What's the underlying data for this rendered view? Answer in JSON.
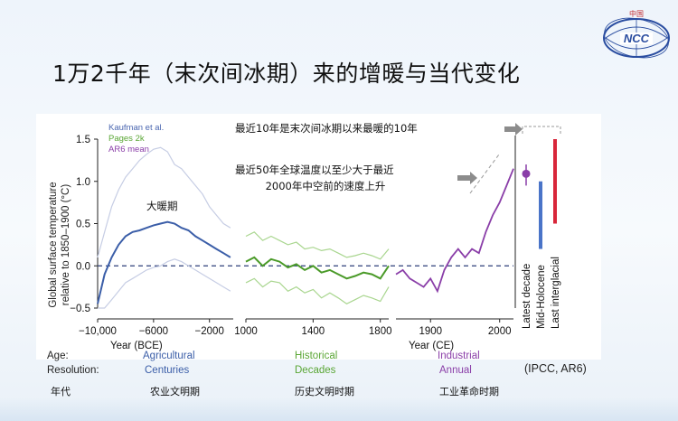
{
  "slide": {
    "title": "1万2千年（末次间冰期）来的增暖与当代变化",
    "logo_text": "中国",
    "logo_brand": "NCC",
    "source": "(IPCC, AR6)"
  },
  "eras": {
    "age_label": "Age:",
    "resolution_label": "Resolution:",
    "agricultural": "Agricultural",
    "centuries": "Centuries",
    "historical": "Historical",
    "decades": "Decades",
    "industrial": "Industrial",
    "annual": "Annual",
    "cn_era": "年代",
    "cn_agri": "农业文明期",
    "cn_hist": "历史文明时期",
    "cn_ind": "工业革命时期",
    "colors": {
      "agricultural": "#3b5ea8",
      "historical": "#5aa635",
      "industrial": "#8a3ea8"
    }
  },
  "annotations": {
    "warm_period": "大暖期",
    "last_decade": "最近10年是末次间冰期以来最暖的10年",
    "rate_line1": "最近50年全球温度以至少大于最近",
    "rate_line2": "2000年中空前的速度上升"
  },
  "chart_data": {
    "type": "line",
    "ylabel_line1": "Global surface temperature",
    "ylabel_line2": "relative to 1850–1900 (°C)",
    "ylim": [
      -0.5,
      1.5
    ],
    "yticks": [
      "1.5",
      "1.0",
      "0.5",
      "0.0",
      "−0.5"
    ],
    "ytick_values": [
      1.5,
      1.0,
      0.5,
      0.0,
      -0.5
    ],
    "legend": [
      {
        "name": "Kaufman et al.",
        "color": "#4a66b0"
      },
      {
        "name": "Pages 2k",
        "color": "#5aa635"
      },
      {
        "name": "AR6 mean",
        "color": "#8a3ea8"
      }
    ],
    "panel1": {
      "xlabel": "Year (BCE)",
      "xlim": [
        -10000,
        -300
      ],
      "xticks": [
        "−10,000",
        "−6000",
        "−2000"
      ],
      "xtick_values": [
        -10000,
        -6000,
        -2000
      ],
      "x": [
        -10000,
        -9500,
        -9000,
        -8500,
        -8000,
        -7500,
        -7000,
        -6500,
        -6000,
        -5500,
        -5000,
        -4500,
        -4000,
        -3500,
        -3000,
        -2500,
        -2000,
        -1500,
        -1000,
        -500
      ],
      "mean": [
        -0.45,
        -0.1,
        0.1,
        0.25,
        0.35,
        0.4,
        0.42,
        0.45,
        0.48,
        0.5,
        0.52,
        0.5,
        0.45,
        0.42,
        0.35,
        0.3,
        0.25,
        0.2,
        0.15,
        0.1
      ],
      "upper": [
        0.1,
        0.4,
        0.7,
        0.9,
        1.05,
        1.15,
        1.25,
        1.32,
        1.38,
        1.4,
        1.35,
        1.2,
        1.15,
        1.05,
        0.95,
        0.85,
        0.7,
        0.6,
        0.5,
        0.45
      ],
      "lower": [
        -0.5,
        -0.5,
        -0.4,
        -0.3,
        -0.2,
        -0.15,
        -0.1,
        -0.05,
        -0.02,
        0.0,
        0.05,
        0.08,
        0.05,
        0.0,
        -0.05,
        -0.1,
        -0.15,
        -0.2,
        -0.25,
        -0.3
      ]
    },
    "panel2": {
      "xlim": [
        1000,
        1850
      ],
      "xticks": [
        "1000",
        "1400",
        "1800"
      ],
      "xtick_values": [
        1000,
        1400,
        1800
      ],
      "x": [
        1000,
        1050,
        1100,
        1150,
        1200,
        1250,
        1300,
        1350,
        1400,
        1450,
        1500,
        1550,
        1600,
        1650,
        1700,
        1750,
        1800,
        1850
      ],
      "mean": [
        0.05,
        0.1,
        0.0,
        0.08,
        0.05,
        -0.02,
        0.02,
        -0.05,
        0.0,
        -0.08,
        -0.05,
        -0.1,
        -0.15,
        -0.12,
        -0.08,
        -0.1,
        -0.15,
        0.0
      ],
      "upper": [
        0.35,
        0.4,
        0.3,
        0.35,
        0.3,
        0.25,
        0.28,
        0.2,
        0.22,
        0.18,
        0.2,
        0.15,
        0.1,
        0.12,
        0.15,
        0.12,
        0.08,
        0.2
      ],
      "lower": [
        -0.2,
        -0.15,
        -0.25,
        -0.18,
        -0.2,
        -0.3,
        -0.25,
        -0.32,
        -0.28,
        -0.38,
        -0.32,
        -0.38,
        -0.45,
        -0.4,
        -0.35,
        -0.38,
        -0.42,
        -0.25
      ]
    },
    "panel3": {
      "xlabel": "Year (CE)",
      "xlim": [
        1850,
        2020
      ],
      "xticks": [
        "1900",
        "2000"
      ],
      "xtick_values": [
        1900,
        2000
      ],
      "x": [
        1850,
        1860,
        1870,
        1880,
        1890,
        1900,
        1910,
        1920,
        1930,
        1940,
        1950,
        1960,
        1970,
        1980,
        1990,
        2000,
        2010,
        2020
      ],
      "values": [
        -0.1,
        -0.05,
        -0.15,
        -0.2,
        -0.25,
        -0.15,
        -0.3,
        -0.05,
        0.1,
        0.2,
        0.1,
        0.2,
        0.15,
        0.4,
        0.6,
        0.75,
        0.95,
        1.15
      ]
    },
    "bars": [
      {
        "label": "Latest decade",
        "color": "#8a3ea8",
        "value": 1.09,
        "low": 0.95,
        "high": 1.2
      },
      {
        "label": "Mid-Holocene",
        "color": "#4a74c8",
        "value": null,
        "low": 0.2,
        "high": 1.0
      },
      {
        "label": "Last interglacial",
        "color": "#d8263a",
        "value": null,
        "low": 0.5,
        "high": 1.5
      }
    ]
  }
}
